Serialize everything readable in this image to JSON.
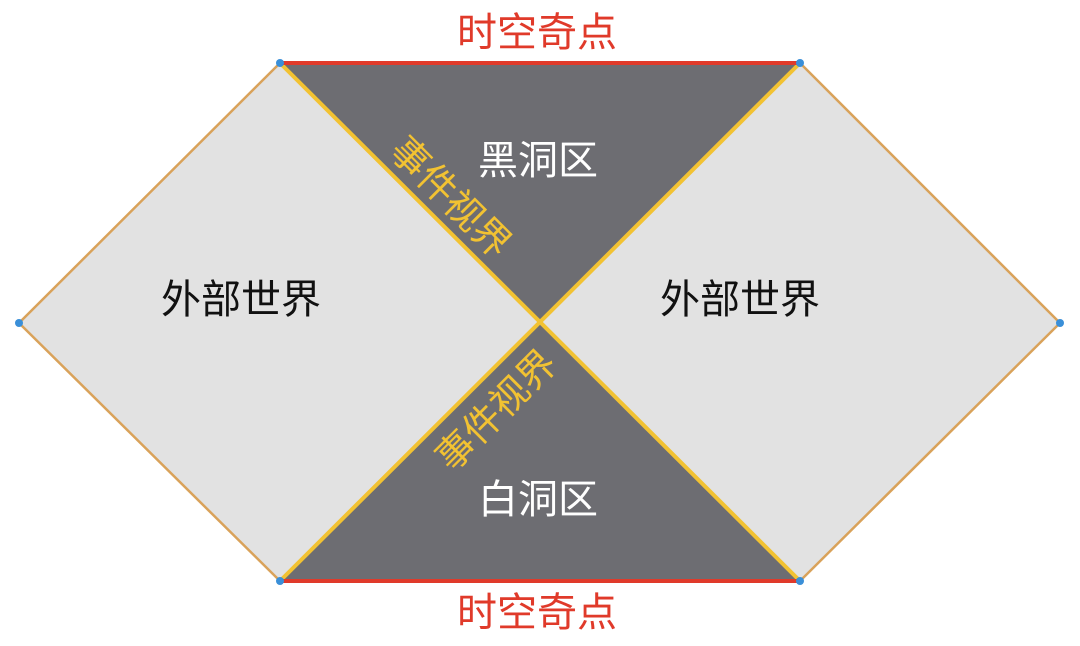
{
  "labels": {
    "singularity_top": "时空奇点",
    "singularity_bottom": "时空奇点",
    "black_hole_region": "黑洞区",
    "white_hole_region": "白洞区",
    "exterior_left": "外部世界",
    "exterior_right": "外部世界",
    "horizon_upper": "事件视界",
    "horizon_lower": "事件视界"
  },
  "colors": {
    "singularity": "#e03a2a",
    "horizon": "#f2c232",
    "outer_edge": "#d9a25a",
    "region_light": "#e2e2e2",
    "region_dark": "#6d6d72",
    "node": "#3a8fd8",
    "text_dark": "#111111",
    "text_light": "#ffffff"
  }
}
